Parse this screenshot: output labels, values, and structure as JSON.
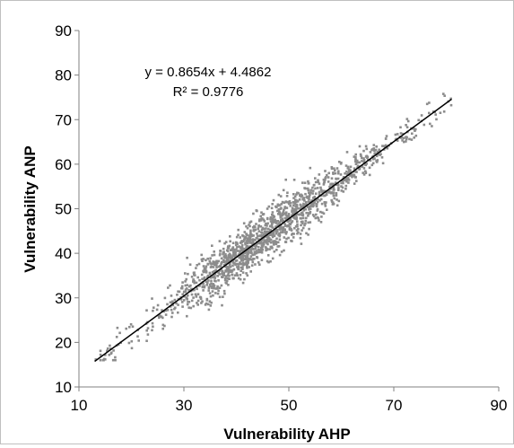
{
  "chart_data": {
    "type": "scatter",
    "title": "",
    "xlabel": "Vulnerability AHP",
    "ylabel": "Vulnerability ANP",
    "xlim": [
      10,
      90
    ],
    "ylim": [
      10,
      90
    ],
    "x_ticks": [
      "10",
      "30",
      "50",
      "70",
      "90"
    ],
    "y_ticks": [
      "10",
      "20",
      "30",
      "40",
      "50",
      "60",
      "70",
      "80",
      "90"
    ],
    "grid": false,
    "legend": "none",
    "point_color": "#8c8c8c",
    "line_color": "#000000",
    "trendline": {
      "type": "linear",
      "slope": 0.8654,
      "intercept": 4.4862,
      "r_squared": 0.9776,
      "x_range": [
        13,
        81
      ],
      "equation_label": "y = 0.8654x + 4.4862",
      "r2_label": "R² = 0.9776"
    },
    "series": [
      {
        "point_count": 1500,
        "approx_x_range": [
          13,
          81
        ],
        "approx_y_range": [
          16,
          81
        ]
      }
    ]
  }
}
